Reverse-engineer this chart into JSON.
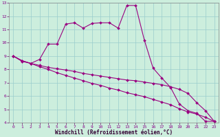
{
  "xlabel": "Windchill (Refroidissement éolien,°C)",
  "x_values": [
    0,
    1,
    2,
    3,
    4,
    5,
    6,
    7,
    8,
    9,
    10,
    11,
    12,
    13,
    14,
    15,
    16,
    17,
    18,
    19,
    20,
    21,
    22,
    23
  ],
  "line_upper": [
    9.0,
    8.6,
    8.45,
    8.75,
    9.9,
    9.9,
    11.4,
    11.5,
    11.1,
    11.45,
    11.5,
    11.5,
    11.1,
    12.8,
    12.8,
    10.2,
    8.1,
    7.35,
    6.65,
    5.4,
    4.9,
    4.7,
    4.1,
    4.1
  ],
  "line_mid": [
    9.0,
    8.65,
    8.45,
    8.3,
    8.15,
    8.05,
    7.95,
    7.85,
    7.7,
    7.6,
    7.5,
    7.4,
    7.3,
    7.2,
    7.15,
    7.05,
    6.95,
    6.85,
    6.7,
    6.5,
    6.2,
    5.5,
    4.9,
    4.1
  ],
  "line_lower": [
    9.0,
    8.65,
    8.45,
    8.2,
    8.0,
    7.75,
    7.55,
    7.35,
    7.15,
    6.95,
    6.8,
    6.6,
    6.45,
    6.25,
    6.1,
    5.95,
    5.75,
    5.55,
    5.35,
    5.05,
    4.8,
    4.65,
    4.4,
    4.1
  ],
  "line_color": "#990080",
  "bg_color": "#cceedd",
  "grid_color": "#99cccc",
  "ylim": [
    4,
    13
  ],
  "xlim": [
    -0.5,
    23.5
  ],
  "yticks": [
    4,
    5,
    6,
    7,
    8,
    9,
    10,
    11,
    12,
    13
  ],
  "xticks": [
    0,
    1,
    2,
    3,
    4,
    5,
    6,
    7,
    8,
    9,
    10,
    11,
    12,
    13,
    14,
    15,
    16,
    17,
    18,
    19,
    20,
    21,
    22,
    23
  ]
}
